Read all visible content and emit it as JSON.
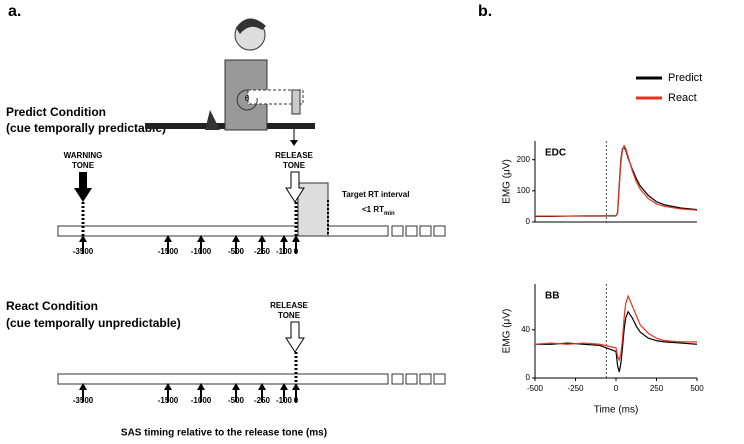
{
  "panel_a": {
    "label": "a.",
    "predict": {
      "title_line1": "Predict Condition",
      "title_line2": "(cue temporally predictable)",
      "warning_line1": "WARNING",
      "warning_line2": "TONE",
      "release_line1": "RELEASE",
      "release_line2": "TONE",
      "interval_line1": "Target RT interval",
      "interval_line2": "<1 RT",
      "interval_sub": "min",
      "ticks": [
        "-3500",
        "-1500",
        "-1000",
        "-500",
        "-250",
        "-100",
        "0"
      ]
    },
    "react": {
      "title_line1": "React Condition",
      "title_line2": "(cue temporally unpredictable)",
      "release_line1": "RELEASE",
      "release_line2": "TONE",
      "ticks": [
        "-3500",
        "-1500",
        "-1000",
        "-500",
        "-250",
        "-100",
        "0"
      ]
    },
    "axis_label": "SAS timing relative to the release tone (ms)",
    "angle_label": "θ"
  },
  "panel_b": {
    "label": "b."
  },
  "chart_data": [
    {
      "type": "line",
      "title": "EDC",
      "ylabel": "EMG (μV)",
      "xlim": [
        -500,
        500
      ],
      "ylim": [
        0,
        260
      ],
      "yticks": [
        0,
        100,
        200
      ],
      "marker_x": -60,
      "x": [
        -500,
        -400,
        -300,
        -200,
        -100,
        0,
        10,
        20,
        30,
        40,
        50,
        60,
        75,
        100,
        125,
        150,
        200,
        250,
        300,
        400,
        500
      ],
      "series": [
        {
          "name": "Predict",
          "color": "#000000",
          "values": [
            18,
            18,
            19,
            19,
            19,
            20,
            30,
            120,
            200,
            235,
            240,
            230,
            205,
            170,
            140,
            115,
            85,
            65,
            55,
            45,
            40
          ]
        },
        {
          "name": "React",
          "color": "#e8321e",
          "values": [
            19,
            19,
            19,
            20,
            20,
            21,
            28,
            110,
            190,
            230,
            245,
            235,
            210,
            165,
            130,
            105,
            75,
            58,
            50,
            42,
            38
          ]
        }
      ]
    },
    {
      "type": "line",
      "title": "BB",
      "ylabel": "EMG (μV)",
      "xlabel": "Time (ms)",
      "xlim": [
        -500,
        500
      ],
      "ylim": [
        0,
        78
      ],
      "yticks": [
        0,
        40
      ],
      "xticks": [
        -500,
        -250,
        0,
        250,
        500
      ],
      "marker_x": -60,
      "x": [
        -500,
        -400,
        -300,
        -200,
        -100,
        0,
        10,
        20,
        30,
        40,
        50,
        60,
        75,
        100,
        125,
        150,
        200,
        250,
        300,
        400,
        500
      ],
      "series": [
        {
          "color": "#000000",
          "values": [
            28,
            28,
            29,
            28,
            27,
            22,
            10,
            5,
            12,
            25,
            40,
            50,
            55,
            50,
            43,
            38,
            33,
            31,
            30,
            29,
            28
          ]
        },
        {
          "color": "#e8321e",
          "values": [
            28,
            29,
            28,
            29,
            28,
            25,
            18,
            15,
            20,
            32,
            50,
            62,
            68,
            60,
            52,
            44,
            37,
            33,
            31,
            30,
            30
          ]
        }
      ]
    }
  ]
}
